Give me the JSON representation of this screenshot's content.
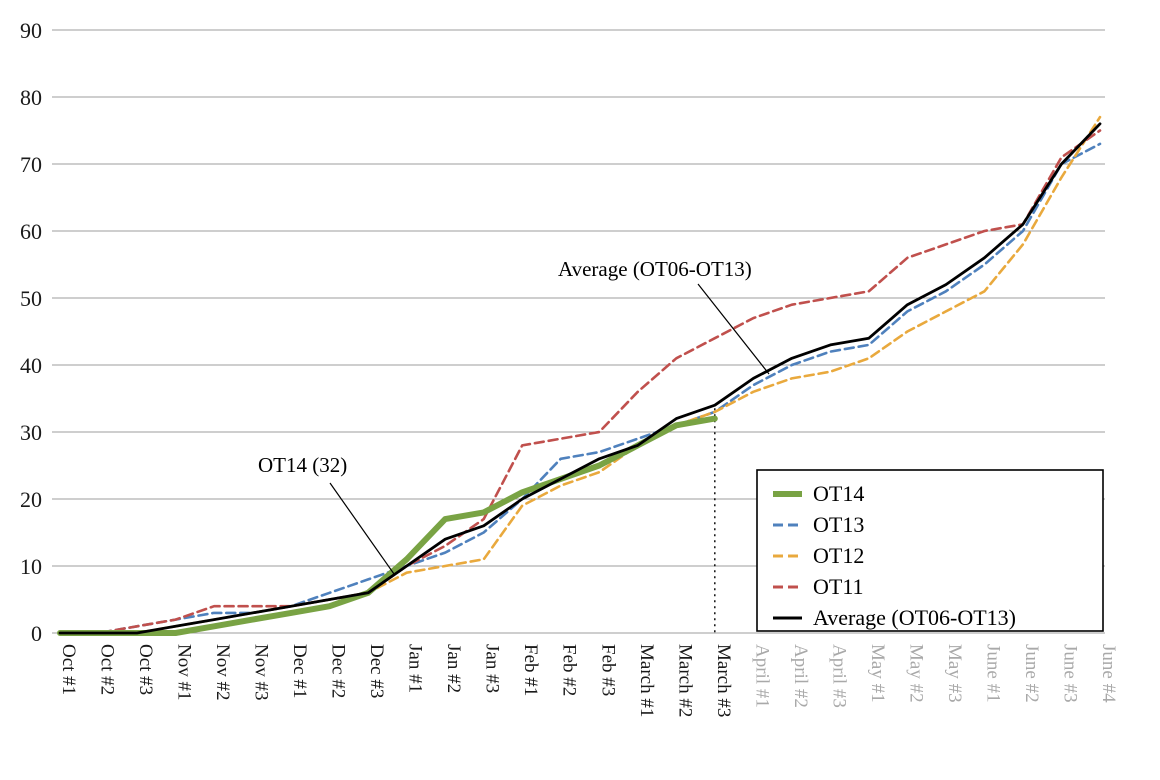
{
  "chart_data": {
    "type": "line",
    "title": "",
    "xlabel": "",
    "ylabel": "",
    "ylim": [
      0,
      90
    ],
    "ytick_step": 10,
    "grid": true,
    "categories": [
      "Oct #1",
      "Oct #2",
      "Oct #3",
      "Nov #1",
      "Nov #2",
      "Nov #3",
      "Dec #1",
      "Dec #2",
      "Dec #3",
      "Jan #1",
      "Jan #2",
      "Jan #3",
      "Feb #1",
      "Feb #2",
      "Feb #3",
      "March #1",
      "March #2",
      "March #3",
      "April #1",
      "April #2",
      "April #3",
      "May #1",
      "May #2",
      "May #3",
      "June #1",
      "June #2",
      "June #3",
      "June #4"
    ],
    "future_start_index": 18,
    "cutoff_index": 17,
    "colors": {
      "grid": "#9d9d9d",
      "axis_label": "#1a1a1a",
      "future_axis_label": "#a9a9a9",
      "green": "#79A344",
      "blue": "#4F81BD",
      "orange": "#E9A93D",
      "red": "#C0504D",
      "black": "#000000"
    },
    "series": [
      {
        "name": "OT14",
        "color": "#79A344",
        "dash": "",
        "width": 6,
        "values": [
          0,
          0,
          0,
          0,
          1,
          2,
          3,
          4,
          6,
          11,
          17,
          18,
          21,
          23,
          25,
          28,
          31,
          32
        ]
      },
      {
        "name": "OT13",
        "color": "#4F81BD",
        "dash": "9 5",
        "width": 2.6,
        "values": [
          0,
          0,
          1,
          2,
          3,
          3,
          4,
          6,
          8,
          10,
          12,
          15,
          20,
          26,
          27,
          29,
          31,
          33,
          37,
          40,
          42,
          43,
          48,
          51,
          55,
          60,
          70,
          73
        ]
      },
      {
        "name": "OT12",
        "color": "#E9A93D",
        "dash": "9 5",
        "width": 2.6,
        "values": [
          0,
          0,
          0,
          1,
          2,
          3,
          4,
          5,
          6,
          9,
          10,
          11,
          19,
          22,
          24,
          28,
          31,
          33,
          36,
          38,
          39,
          41,
          45,
          48,
          51,
          58,
          68,
          77
        ]
      },
      {
        "name": "OT11",
        "color": "#C0504D",
        "dash": "9 5",
        "width": 2.6,
        "values": [
          0,
          0,
          1,
          2,
          4,
          4,
          4,
          5,
          6,
          10,
          13,
          17,
          28,
          29,
          30,
          36,
          41,
          44,
          47,
          49,
          50,
          51,
          56,
          58,
          60,
          61,
          71,
          75
        ]
      },
      {
        "name": "Average (OT06-OT13)",
        "color": "#000000",
        "dash": "",
        "width": 2.8,
        "values": [
          0,
          0,
          0,
          1,
          2,
          3,
          4,
          5,
          6,
          10,
          14,
          16,
          20,
          23,
          26,
          28,
          32,
          34,
          38,
          41,
          43,
          44,
          49,
          52,
          56,
          61,
          70,
          76
        ]
      }
    ],
    "annotations": [
      {
        "id": "annotation-average",
        "text": "Average (OT06-OT13)",
        "x": 558,
        "y": 276,
        "line": [
          698,
          284,
          769,
          374
        ]
      },
      {
        "id": "annotation-ot14",
        "text": "OT14 (32)",
        "x": 258,
        "y": 472,
        "line": [
          330,
          483,
          394,
          574
        ]
      }
    ],
    "legend": {
      "position": "bottom-right",
      "items": [
        "OT14",
        "OT13",
        "OT12",
        "OT11",
        "Average (OT06-OT13)"
      ]
    },
    "yticks": [
      "0",
      "10",
      "20",
      "30",
      "40",
      "50",
      "60",
      "70",
      "80",
      "90"
    ]
  }
}
